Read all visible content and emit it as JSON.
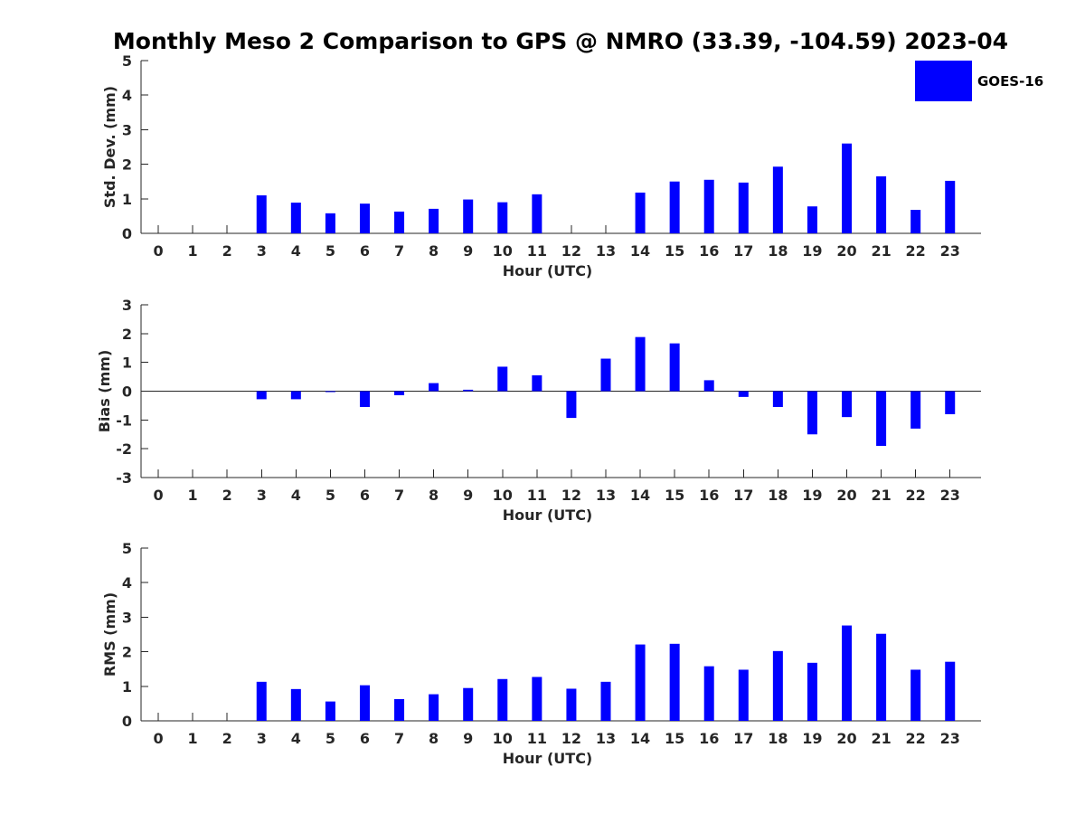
{
  "figure": {
    "title": "Monthly Meso 2 Comparison to GPS @ NMRO (33.39, -104.59) 2023-04"
  },
  "legend": {
    "label": "GOES-16",
    "color": "#0000ff",
    "placement": "top-right"
  },
  "chart_data": [
    {
      "type": "bar",
      "ylabel": "Std. Dev. (mm)",
      "xlabel": "Hour (UTC)",
      "ylim": [
        0,
        5
      ],
      "yticks": [
        0,
        1,
        2,
        3,
        4,
        5
      ],
      "x": [
        0,
        1,
        2,
        3,
        4,
        5,
        6,
        7,
        8,
        9,
        10,
        11,
        12,
        13,
        14,
        15,
        16,
        17,
        18,
        19,
        20,
        21,
        22,
        23
      ],
      "series": [
        {
          "name": "GOES-16",
          "color": "#0000ff",
          "values": [
            null,
            null,
            null,
            1.1,
            0.89,
            0.58,
            0.86,
            0.63,
            0.71,
            0.98,
            0.9,
            1.13,
            null,
            null,
            1.18,
            1.5,
            1.55,
            1.47,
            1.93,
            0.78,
            2.6,
            1.65,
            0.68,
            1.52
          ]
        }
      ]
    },
    {
      "type": "bar",
      "ylabel": "Bias (mm)",
      "xlabel": "Hour (UTC)",
      "ylim": [
        -3,
        3
      ],
      "yticks": [
        -3,
        -2,
        -1,
        0,
        1,
        2,
        3
      ],
      "x": [
        0,
        1,
        2,
        3,
        4,
        5,
        6,
        7,
        8,
        9,
        10,
        11,
        12,
        13,
        14,
        15,
        16,
        17,
        18,
        19,
        20,
        21,
        22,
        23
      ],
      "series": [
        {
          "name": "GOES-16",
          "color": "#0000ff",
          "values": [
            null,
            null,
            null,
            -0.28,
            -0.28,
            0.0,
            -0.55,
            -0.14,
            0.28,
            0.05,
            0.85,
            0.55,
            -0.93,
            1.13,
            1.88,
            1.66,
            0.38,
            -0.2,
            -0.55,
            -1.5,
            -0.9,
            -1.9,
            -1.3,
            -0.8
          ]
        }
      ]
    },
    {
      "type": "bar",
      "ylabel": "RMS (mm)",
      "xlabel": "Hour (UTC)",
      "ylim": [
        0,
        5
      ],
      "yticks": [
        0,
        1,
        2,
        3,
        4,
        5
      ],
      "x": [
        0,
        1,
        2,
        3,
        4,
        5,
        6,
        7,
        8,
        9,
        10,
        11,
        12,
        13,
        14,
        15,
        16,
        17,
        18,
        19,
        20,
        21,
        22,
        23
      ],
      "series": [
        {
          "name": "GOES-16",
          "color": "#0000ff",
          "values": [
            null,
            null,
            null,
            1.13,
            0.92,
            0.56,
            1.03,
            0.63,
            0.77,
            0.95,
            1.21,
            1.27,
            0.93,
            1.13,
            2.21,
            2.23,
            1.58,
            1.48,
            2.02,
            1.68,
            2.76,
            2.52,
            1.48,
            1.71
          ]
        }
      ]
    }
  ]
}
